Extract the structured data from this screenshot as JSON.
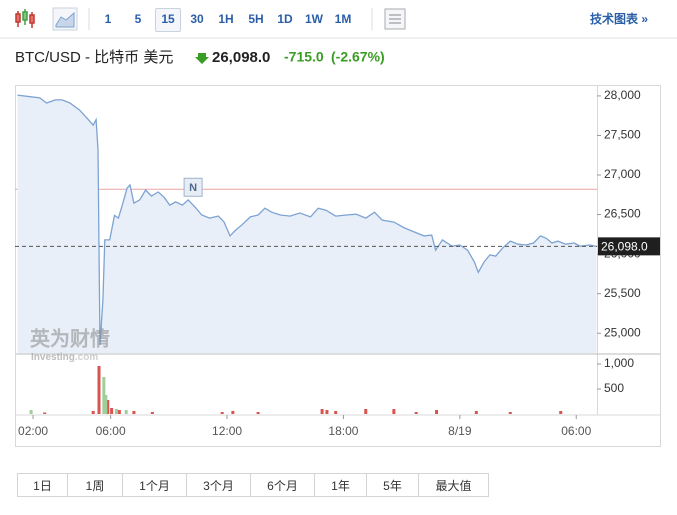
{
  "toolbar": {
    "intervals": [
      "1",
      "5",
      "15",
      "30",
      "1H",
      "5H",
      "1D",
      "1W",
      "1M"
    ],
    "selected_interval": 2,
    "technical_link": "技术图表 »"
  },
  "header": {
    "symbol": "BTC/USD - 比特币 美元",
    "price": "26,098.0",
    "change": "-715.0",
    "change_percent": "(-2.67%)"
  },
  "watermark": {
    "brand": "英为财情",
    "site": "Investing",
    "site_suffix": ".com"
  },
  "periods": [
    "1日",
    "1周",
    "1个月",
    "3个月",
    "6个月",
    "1年",
    "5年",
    "最大值"
  ],
  "chart_data": [
    {
      "type": "area",
      "color": "#7da3d3",
      "fill": "#e9eff8",
      "x": [
        1.2,
        1.85,
        2.35,
        2.7,
        3.15,
        3.5,
        3.9,
        4.4,
        4.85,
        5.1,
        5.25,
        5.35,
        5.45,
        5.6,
        5.7,
        5.95,
        6.2,
        6.4,
        6.6,
        6.85,
        7.0,
        7.2,
        7.5,
        7.8,
        8.1,
        8.45,
        8.75,
        9.05,
        9.35,
        9.7,
        10.0,
        10.35,
        10.7,
        11.1,
        11.55,
        11.85,
        12.15,
        12.45,
        12.75,
        13.2,
        13.6,
        13.95,
        14.3,
        14.75,
        15.25,
        15.75,
        16.3,
        16.7,
        17.1,
        17.6,
        18.15,
        18.65,
        19.15,
        19.6,
        20.0,
        20.6,
        21.15,
        21.65,
        22.15,
        22.55,
        22.75,
        23.1,
        23.6,
        24.0,
        24.4,
        24.75,
        24.95,
        25.25,
        25.55,
        25.85,
        26.2,
        26.6,
        27.0,
        27.4,
        27.8,
        28.15,
        28.45,
        28.75,
        29.05,
        29.45,
        29.9,
        30.2,
        30.7,
        31.05
      ],
      "values": [
        28010,
        27990,
        27975,
        27910,
        27950,
        27950,
        27910,
        27820,
        27700,
        27630,
        27700,
        27320,
        24850,
        25420,
        26180,
        26180,
        26490,
        26455,
        26620,
        26835,
        26875,
        26645,
        26685,
        26810,
        26735,
        26785,
        26720,
        26620,
        26660,
        26620,
        26685,
        26595,
        26495,
        26455,
        26480,
        26405,
        26230,
        26305,
        26365,
        26470,
        26495,
        26580,
        26530,
        26495,
        26480,
        26520,
        26470,
        26580,
        26555,
        26480,
        26495,
        26505,
        26455,
        26530,
        26430,
        26405,
        26330,
        26280,
        26230,
        26240,
        26050,
        26180,
        26100,
        26115,
        26050,
        25900,
        25770,
        25900,
        25990,
        25975,
        26075,
        26165,
        26125,
        26115,
        26140,
        26230,
        26200,
        26140,
        26165,
        26125,
        26140,
        26100,
        26115,
        26098
      ],
      "xlim": [
        1.07,
        31.07
      ],
      "ylim": [
        24750,
        28100
      ],
      "yticks": [
        {
          "value": 25000,
          "label": "25,000"
        },
        {
          "value": 25500,
          "label": "25,500"
        },
        {
          "value": 26000,
          "label": "26,000"
        },
        {
          "value": 26500,
          "label": "26,500"
        },
        {
          "value": 27000,
          "label": "27,000"
        },
        {
          "value": 27500,
          "label": "27,500"
        },
        {
          "value": 28000,
          "label": "28,000"
        }
      ],
      "reference_line": 26820,
      "reference_color": "#eaa5a5",
      "last_value": {
        "value": 26098,
        "label": "26,098.0"
      },
      "annotation": {
        "x": 10.25,
        "label": "N"
      }
    },
    {
      "type": "bar",
      "series": [
        {
          "color": "#d9534f",
          "x": [
            2.6,
            5.1,
            5.4,
            5.85,
            6.05,
            6.45,
            7.2,
            8.15,
            11.75,
            12.3,
            13.6,
            16.9,
            17.15,
            17.6,
            19.15,
            20.6,
            21.75,
            22.8,
            24.85,
            26.6,
            29.2
          ],
          "values": [
            30,
            60,
            960,
            280,
            120,
            80,
            60,
            40,
            40,
            60,
            40,
            100,
            80,
            60,
            100,
            100,
            40,
            80,
            60,
            40,
            60
          ]
        },
        {
          "color": "#9fce9a",
          "x": [
            1.9,
            5.65,
            5.75,
            6.3,
            6.8
          ],
          "values": [
            80,
            740,
            380,
            100,
            80
          ]
        }
      ],
      "xlim": [
        1.07,
        31.07
      ],
      "ylim": [
        0,
        1180
      ],
      "yticks": [
        500,
        {
          "value": 1000,
          "label": "1,000"
        }
      ],
      "xticks": [
        {
          "value": 2,
          "label": "02:00"
        },
        {
          "value": 6,
          "label": "06:00"
        },
        {
          "value": 12,
          "label": "12:00"
        },
        {
          "value": 18,
          "label": "18:00"
        },
        {
          "value": 24,
          "label": "8/19"
        },
        {
          "value": 30,
          "label": "06:00"
        }
      ]
    }
  ]
}
